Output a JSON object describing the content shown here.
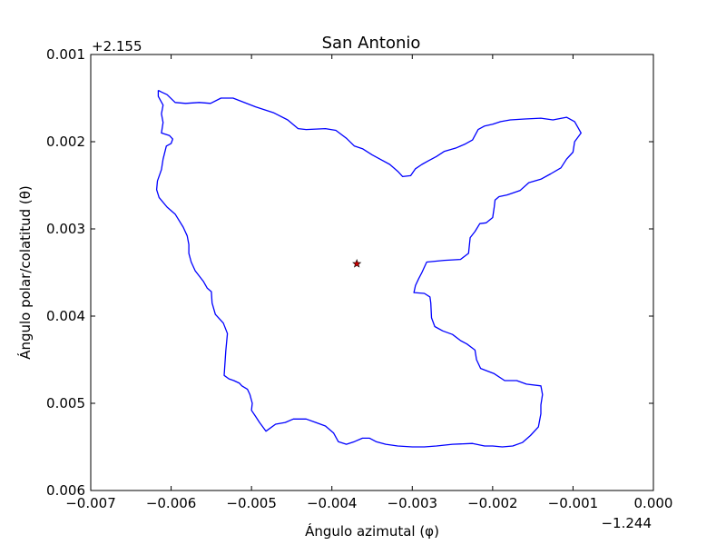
{
  "chart_data": {
    "type": "line",
    "title": "San Antonio",
    "xlabel": "Ángulo azimutal (φ)",
    "ylabel": "Ángulo polar/colatitud (θ)",
    "x_offset_label": "−1.244",
    "y_offset_label": "+2.155",
    "xlim": [
      -0.007,
      0.0
    ],
    "ylim": [
      0.001,
      0.006
    ],
    "y_inverted": true,
    "x_ticks": [
      -0.007,
      -0.006,
      -0.005,
      -0.004,
      -0.003,
      -0.002,
      -0.001,
      0.0
    ],
    "x_tick_labels": [
      "−0.007",
      "−0.006",
      "−0.005",
      "−0.004",
      "−0.003",
      "−0.002",
      "−0.001",
      "0.000"
    ],
    "y_ticks": [
      0.001,
      0.002,
      0.003,
      0.004,
      0.005,
      0.006
    ],
    "y_tick_labels": [
      "0.001",
      "0.002",
      "0.003",
      "0.004",
      "0.005",
      "0.006"
    ],
    "grid": false,
    "series": [
      {
        "color": "#0000ff",
        "points": [
          [
            -0.00616,
            0.00141
          ],
          [
            -0.00612,
            0.00143
          ],
          [
            -0.00605,
            0.00146
          ],
          [
            -0.00595,
            0.00155
          ],
          [
            -0.00582,
            0.00156
          ],
          [
            -0.00565,
            0.00155
          ],
          [
            -0.00551,
            0.00156
          ],
          [
            -0.00538,
            0.0015
          ],
          [
            -0.00523,
            0.0015
          ],
          [
            -0.00495,
            0.0016
          ],
          [
            -0.00472,
            0.00167
          ],
          [
            -0.00455,
            0.00175
          ],
          [
            -0.00442,
            0.00185
          ],
          [
            -0.00432,
            0.00186
          ],
          [
            -0.00408,
            0.00185
          ],
          [
            -0.00395,
            0.00187
          ],
          [
            -0.00382,
            0.00196
          ],
          [
            -0.00372,
            0.00205
          ],
          [
            -0.00362,
            0.00208
          ],
          [
            -0.0035,
            0.00215
          ],
          [
            -0.00338,
            0.00221
          ],
          [
            -0.00328,
            0.00226
          ],
          [
            -0.00318,
            0.00234
          ],
          [
            -0.00312,
            0.0024
          ],
          [
            -0.00302,
            0.00239
          ],
          [
            -0.00296,
            0.00231
          ],
          [
            -0.00288,
            0.00226
          ],
          [
            -0.0028,
            0.00222
          ],
          [
            -0.0027,
            0.00217
          ],
          [
            -0.0026,
            0.00211
          ],
          [
            -0.00245,
            0.00207
          ],
          [
            -0.00235,
            0.00203
          ],
          [
            -0.00225,
            0.00198
          ],
          [
            -0.00218,
            0.00186
          ],
          [
            -0.0021,
            0.00182
          ],
          [
            -0.002,
            0.0018
          ],
          [
            -0.0019,
            0.00177
          ],
          [
            -0.00178,
            0.00175
          ],
          [
            -0.0016,
            0.00174
          ],
          [
            -0.0014,
            0.00173
          ],
          [
            -0.00125,
            0.00175
          ],
          [
            -0.00108,
            0.00172
          ],
          [
            -0.00098,
            0.00177
          ],
          [
            -0.0009,
            0.0019
          ],
          [
            -0.00098,
            0.002
          ],
          [
            -0.001,
            0.00212
          ],
          [
            -0.00108,
            0.0022
          ],
          [
            -0.00115,
            0.0023
          ],
          [
            -0.00128,
            0.00237
          ],
          [
            -0.0014,
            0.00243
          ],
          [
            -0.00155,
            0.00247
          ],
          [
            -0.00166,
            0.00256
          ],
          [
            -0.00182,
            0.00261
          ],
          [
            -0.00192,
            0.00263
          ],
          [
            -0.00197,
            0.00267
          ],
          [
            -0.00198,
            0.00275
          ],
          [
            -0.002,
            0.00287
          ],
          [
            -0.00208,
            0.00293
          ],
          [
            -0.00216,
            0.00294
          ],
          [
            -0.00222,
            0.00303
          ],
          [
            -0.00228,
            0.0031
          ],
          [
            -0.0023,
            0.00328
          ],
          [
            -0.0024,
            0.00335
          ],
          [
            -0.0026,
            0.00336
          ],
          [
            -0.00282,
            0.00338
          ],
          [
            -0.00288,
            0.0035
          ],
          [
            -0.00292,
            0.00357
          ],
          [
            -0.00296,
            0.00365
          ],
          [
            -0.00298,
            0.00373
          ],
          [
            -0.00285,
            0.00374
          ],
          [
            -0.00278,
            0.00378
          ],
          [
            -0.00277,
            0.00385
          ],
          [
            -0.00276,
            0.00402
          ],
          [
            -0.00272,
            0.00412
          ],
          [
            -0.00262,
            0.00417
          ],
          [
            -0.0025,
            0.00421
          ],
          [
            -0.0024,
            0.00428
          ],
          [
            -0.00232,
            0.00432
          ],
          [
            -0.00222,
            0.00439
          ],
          [
            -0.0022,
            0.0045
          ],
          [
            -0.00215,
            0.0046
          ],
          [
            -0.00198,
            0.00466
          ],
          [
            -0.00185,
            0.00474
          ],
          [
            -0.0017,
            0.00474
          ],
          [
            -0.00158,
            0.00478
          ],
          [
            -0.0014,
            0.0048
          ],
          [
            -0.00138,
            0.0049
          ],
          [
            -0.0014,
            0.00502
          ],
          [
            -0.0014,
            0.00512
          ],
          [
            -0.00143,
            0.00527
          ],
          [
            -0.00153,
            0.00537
          ],
          [
            -0.00163,
            0.00545
          ],
          [
            -0.00175,
            0.00549
          ],
          [
            -0.00188,
            0.0055
          ],
          [
            -0.002,
            0.00549
          ],
          [
            -0.0021,
            0.00549
          ],
          [
            -0.00225,
            0.00546
          ],
          [
            -0.0025,
            0.00547
          ],
          [
            -0.0027,
            0.00549
          ],
          [
            -0.00285,
            0.0055
          ],
          [
            -0.003,
            0.0055
          ],
          [
            -0.00318,
            0.00549
          ],
          [
            -0.00333,
            0.00547
          ],
          [
            -0.00345,
            0.00544
          ],
          [
            -0.00353,
            0.0054
          ],
          [
            -0.00362,
            0.0054
          ],
          [
            -0.00372,
            0.00544
          ],
          [
            -0.00382,
            0.00547
          ],
          [
            -0.00392,
            0.00544
          ],
          [
            -0.00398,
            0.00534
          ],
          [
            -0.00408,
            0.00526
          ],
          [
            -0.0042,
            0.00522
          ],
          [
            -0.00432,
            0.00518
          ],
          [
            -0.00448,
            0.00518
          ],
          [
            -0.00458,
            0.00522
          ],
          [
            -0.0047,
            0.00524
          ],
          [
            -0.00482,
            0.00532
          ],
          [
            -0.0049,
            0.00522
          ],
          [
            -0.00495,
            0.00515
          ],
          [
            -0.005,
            0.00508
          ],
          [
            -0.00499,
            0.005
          ],
          [
            -0.00502,
            0.0049
          ],
          [
            -0.00505,
            0.00484
          ],
          [
            -0.00512,
            0.0048
          ],
          [
            -0.00515,
            0.00477
          ],
          [
            -0.00522,
            0.00474
          ],
          [
            -0.00528,
            0.00472
          ],
          [
            -0.00534,
            0.00468
          ],
          [
            -0.00532,
            0.0044
          ],
          [
            -0.0053,
            0.0042
          ],
          [
            -0.00535,
            0.00408
          ],
          [
            -0.00545,
            0.00398
          ],
          [
            -0.00549,
            0.00385
          ],
          [
            -0.0055,
            0.00372
          ],
          [
            -0.00555,
            0.00368
          ],
          [
            -0.0056,
            0.0036
          ],
          [
            -0.0057,
            0.00348
          ],
          [
            -0.00575,
            0.00338
          ],
          [
            -0.00578,
            0.00328
          ],
          [
            -0.00578,
            0.00318
          ],
          [
            -0.0058,
            0.00308
          ],
          [
            -0.00585,
            0.00298
          ],
          [
            -0.00595,
            0.00283
          ],
          [
            -0.00605,
            0.00275
          ],
          [
            -0.00615,
            0.00264
          ],
          [
            -0.00618,
            0.00255
          ],
          [
            -0.00617,
            0.00245
          ],
          [
            -0.00612,
            0.00232
          ],
          [
            -0.0061,
            0.0022
          ],
          [
            -0.00606,
            0.00205
          ],
          [
            -0.006,
            0.00202
          ],
          [
            -0.00598,
            0.00197
          ],
          [
            -0.00602,
            0.00193
          ],
          [
            -0.00612,
            0.0019
          ],
          [
            -0.0061,
            0.00178
          ],
          [
            -0.00612,
            0.00168
          ],
          [
            -0.0061,
            0.00158
          ],
          [
            -0.00616,
            0.00148
          ],
          [
            -0.00616,
            0.00141
          ]
        ]
      }
    ],
    "marker": {
      "x": -0.00369,
      "y": 0.0034,
      "symbol": "star",
      "color": "#cc0000"
    }
  }
}
